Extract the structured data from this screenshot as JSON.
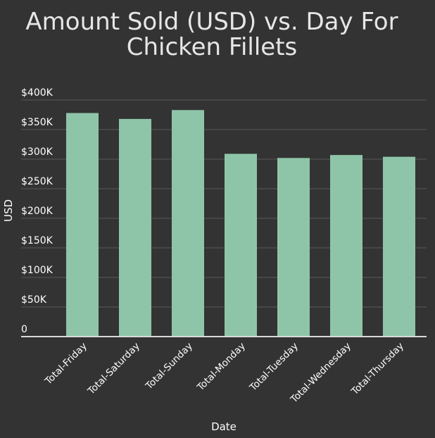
{
  "chart_data": {
    "type": "bar",
    "title_lines": [
      "Amount Sold (USD) vs. Day For",
      "Chicken Fillets"
    ],
    "xlabel": "Date",
    "ylabel": "USD",
    "categories": [
      "Total-Friday",
      "Total-Saturday",
      "Total-Sunday",
      "Total-Monday",
      "Total-Tuesday",
      "Total-Wednesday",
      "Total-Thursday"
    ],
    "series": [
      {
        "values": [
          378000,
          368000,
          383000,
          309000,
          302000,
          307000,
          304000
        ]
      }
    ],
    "ylim": [
      0,
      400000
    ],
    "yticks": [
      0,
      50000,
      100000,
      150000,
      200000,
      250000,
      300000,
      350000,
      400000
    ],
    "ytick_labels": [
      "0",
      "$50K",
      "$100K",
      "$150K",
      "$200K",
      "$250K",
      "$300K",
      "$350K",
      "$400K"
    ],
    "grid": true,
    "legend": "none",
    "colors": {
      "background": "#333333",
      "bar": "#8ec5a8",
      "grid": "#5a5a5a",
      "axis": "#d9d9d9",
      "text": "#ffffff",
      "title": "#e6e6e6"
    }
  }
}
